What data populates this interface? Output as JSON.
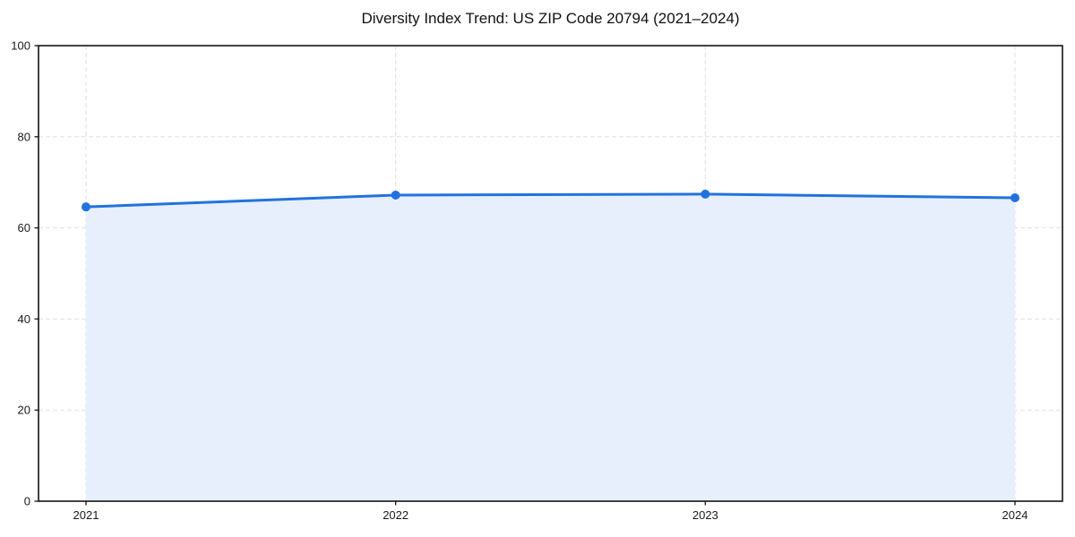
{
  "chart_data": {
    "type": "area",
    "title": "Diversity Index Trend: US ZIP Code 20794 (2021–2024)",
    "categories": [
      "2021",
      "2022",
      "2023",
      "2024"
    ],
    "series": [
      {
        "name": "Diversity Index",
        "values": [
          64.6,
          67.2,
          67.4,
          66.6
        ]
      }
    ],
    "xlabel": "",
    "ylabel": "",
    "ylim": [
      0,
      100
    ],
    "yticks": [
      0,
      20,
      40,
      60,
      80,
      100
    ],
    "grid": "dashed-both-axes",
    "legend": "none",
    "markers": "filled-circle",
    "colors": {
      "line": "#2272de",
      "marker": "#2272de",
      "fill": "#e7effc",
      "grid": "#e0e0e0",
      "spine": "#141414",
      "tick_text": "#1a1a1a",
      "background": "#ffffff"
    }
  }
}
